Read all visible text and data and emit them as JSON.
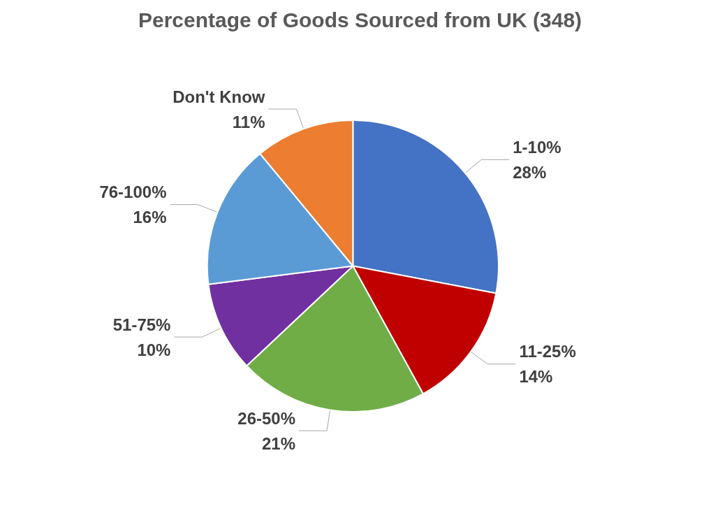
{
  "chart_data": {
    "type": "pie",
    "title": "Percentage of Goods Sourced from UK (348)",
    "categories": [
      "1-10%",
      "11-25%",
      "26-50%",
      "51-75%",
      "76-100%",
      "Don't Know"
    ],
    "values": [
      28,
      14,
      21,
      10,
      16,
      11
    ],
    "value_labels": [
      "28%",
      "14%",
      "21%",
      "10%",
      "16%",
      "11%"
    ],
    "colors": [
      "#4472c4",
      "#c00000",
      "#70ad47",
      "#7030a0",
      "#5b9bd5",
      "#ed7d31"
    ],
    "legend": false
  }
}
